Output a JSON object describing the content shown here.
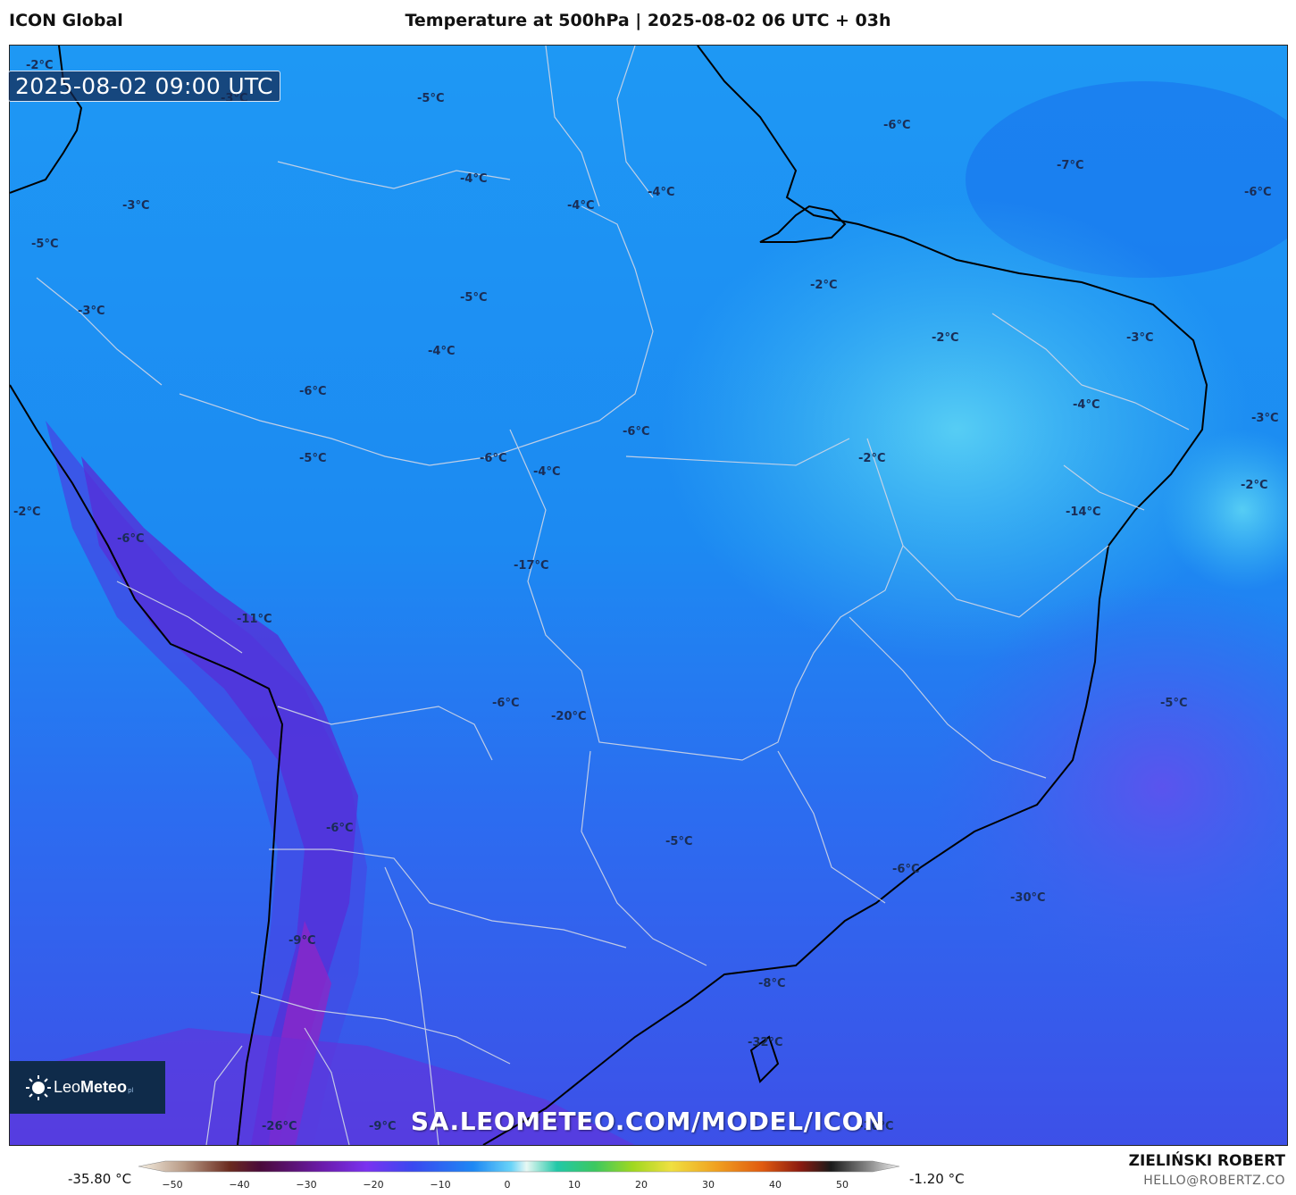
{
  "header": {
    "model_name": "ICON Global",
    "title": "Temperature at 500hPa | 2025-08-02 06 UTC + 03h"
  },
  "map": {
    "valid_time": "2025-08-02 09:00 UTC",
    "watermark": "SA.LEOMETEO.COM/MODEL/ICON",
    "logo": {
      "text_light": "Leo",
      "text_bold": "Meteo",
      "suffix": "pl"
    },
    "temperature_labels": [
      "-2°C",
      "-5°C",
      "-3°C",
      "-6°C",
      "-7°C",
      "-6°C",
      "-4°C",
      "-4°C",
      "-4°C",
      "-3°C",
      "-5°C",
      "-2°C",
      "-3°C",
      "-5°C",
      "-4°C",
      "-2°C",
      "-3°C",
      "-6°C",
      "-6°C",
      "-4°C",
      "-3°C",
      "-5°C",
      "-6°C",
      "-2°C",
      "-4°C",
      "-2°C",
      "-2°C",
      "-14°C",
      "-6°C",
      "-17°C",
      "-11°C",
      "-5°C",
      "-6°C",
      "-20°C",
      "-6°C",
      "-5°C",
      "-6°C",
      "-30°C",
      "-9°C",
      "-8°C",
      "-32°C",
      "-26°C",
      "-9°C",
      "-10°C"
    ],
    "colors": {
      "warm_cyan": "#4cc6f2",
      "light_blue": "#2aa4f0",
      "mid_blue": "#1c8cf4",
      "deep_blue": "#3264f0",
      "indigo": "#4a46e8",
      "violet": "#6a2ed8",
      "deep_violet": "#8a28c8",
      "ocean_purple": "#5a5af0",
      "country_border": "#d0d6e6",
      "coastline": "#000000"
    }
  },
  "colorbar": {
    "min_label": "-35.80 °C",
    "max_label": "-1.20 °C",
    "ticks": [
      "−50",
      "−40",
      "−30",
      "−20",
      "−10",
      "0",
      "10",
      "20",
      "30",
      "40",
      "50"
    ]
  },
  "footer": {
    "author": "ZIELIŃSKI ROBERT",
    "email": "HELLO@ROBERTZ.CO"
  }
}
